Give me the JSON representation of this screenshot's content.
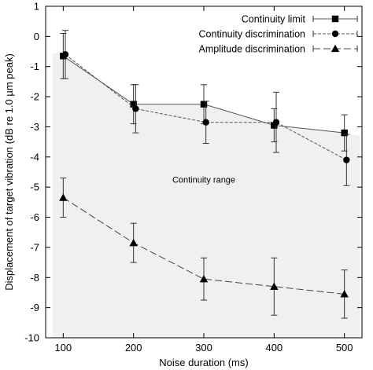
{
  "chart_data": {
    "type": "line",
    "xlabel": "Noise duration (ms)",
    "ylabel": "Displacement of target vibration (dB re 1.0 µm peak)",
    "xlim": [
      75,
      525
    ],
    "ylim": [
      -10,
      1
    ],
    "xticks": [
      100,
      200,
      300,
      400,
      500
    ],
    "yticks": [
      1,
      0,
      -1,
      -2,
      -3,
      -4,
      -5,
      -6,
      -7,
      -8,
      -9,
      -10
    ],
    "grid": false,
    "legend_position": "top-right",
    "annotation": {
      "text": "Continuity range",
      "x": 300,
      "y": -4.85
    },
    "shaded_region": {
      "x": [
        85,
        100,
        200,
        300,
        400,
        500,
        522
      ],
      "upper": [
        -0.55,
        -0.6,
        -2.25,
        -2.25,
        -2.95,
        -3.2,
        -3.3
      ],
      "lower": [
        -10,
        -10,
        -10,
        -10,
        -10,
        -10,
        -10
      ],
      "color": "#f0f0f0"
    },
    "series": [
      {
        "name": "Continuity limit",
        "marker": "square",
        "dash": "solid",
        "x": [
          100,
          200,
          300,
          400,
          500
        ],
        "y": [
          -0.65,
          -2.25,
          -2.25,
          -2.95,
          -3.2
        ],
        "err": [
          0.75,
          0.65,
          0.65,
          0.55,
          0.6
        ],
        "color": "#555555"
      },
      {
        "name": "Continuity discrimination",
        "marker": "circle",
        "dash": "short",
        "x": [
          103,
          203,
          303,
          403,
          503
        ],
        "y": [
          -0.6,
          -2.4,
          -2.85,
          -2.85,
          -4.1
        ],
        "err": [
          0.8,
          0.8,
          0.7,
          1.0,
          0.85
        ],
        "color": "#555555"
      },
      {
        "name": "Amplitude discrimination",
        "marker": "triangle",
        "dash": "long",
        "x": [
          100,
          200,
          300,
          400,
          500
        ],
        "y": [
          -5.35,
          -6.85,
          -8.05,
          -8.3,
          -8.55
        ],
        "err": [
          0.65,
          0.65,
          0.7,
          0.95,
          0.8
        ],
        "color": "#444444"
      }
    ]
  }
}
